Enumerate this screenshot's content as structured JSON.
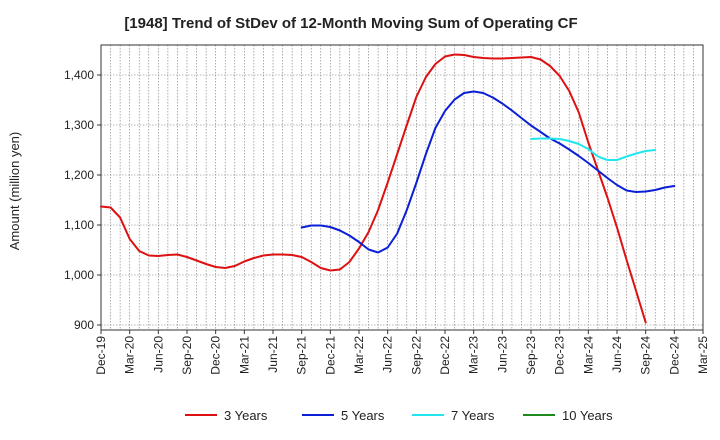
{
  "chart_data": {
    "type": "line",
    "title": "[1948]  Trend of StDev of 12-Month Moving Sum of Operating CF",
    "ylabel": "Amount (million yen)",
    "xlabel": "",
    "ylim": [
      890,
      1460
    ],
    "yticks": [
      900,
      1000,
      1100,
      1200,
      1300,
      1400
    ],
    "ytick_labels": [
      "900",
      "1,000",
      "1,100",
      "1,200",
      "1,300",
      "1,400"
    ],
    "x_labels": [
      "Dec-19",
      "Mar-20",
      "Jun-20",
      "Sep-20",
      "Dec-20",
      "Mar-21",
      "Jun-21",
      "Sep-21",
      "Dec-21",
      "Mar-22",
      "Jun-22",
      "Sep-22",
      "Dec-22",
      "Mar-23",
      "Jun-23",
      "Sep-23",
      "Dec-23",
      "Mar-24",
      "Jun-24",
      "Sep-24",
      "Dec-24",
      "Mar-25"
    ],
    "grid": true,
    "legend_position": "bottom",
    "series": [
      {
        "name": "3 Years",
        "color": "#dd1111",
        "start_index": 0,
        "values": [
          1137,
          1135,
          1115,
          1072,
          1048,
          1039,
          1038,
          1040,
          1041,
          1036,
          1029,
          1022,
          1016,
          1014,
          1018,
          1027,
          1034,
          1039,
          1041,
          1041,
          1040,
          1036,
          1026,
          1014,
          1009,
          1011,
          1026,
          1053,
          1086,
          1130,
          1185,
          1242,
          1300,
          1356,
          1396,
          1422,
          1437,
          1441,
          1440,
          1436,
          1434,
          1433,
          1433,
          1434,
          1435,
          1436,
          1431,
          1418,
          1398,
          1368,
          1325,
          1265,
          1210,
          1155,
          1095,
          1030,
          968,
          905
        ]
      },
      {
        "name": "5 Years",
        "color": "#0a1fd6",
        "start_index": 21,
        "values": [
          1095,
          1099,
          1099,
          1096,
          1089,
          1079,
          1066,
          1051,
          1045,
          1055,
          1083,
          1130,
          1184,
          1242,
          1294,
          1328,
          1351,
          1364,
          1367,
          1364,
          1355,
          1343,
          1329,
          1314,
          1299,
          1286,
          1273,
          1263,
          1251,
          1238,
          1224,
          1209,
          1194,
          1180,
          1169,
          1166,
          1167,
          1170,
          1175,
          1178
        ]
      },
      {
        "name": "7 Years",
        "color": "#22e5ee",
        "start_index": 45,
        "values": [
          1272,
          1273,
          1273,
          1272,
          1268,
          1262,
          1252,
          1237,
          1230,
          1230,
          1237,
          1243,
          1248,
          1250
        ]
      },
      {
        "name": "10 Years",
        "color": "#1e8a1e",
        "start_index": 0,
        "values": []
      }
    ]
  }
}
